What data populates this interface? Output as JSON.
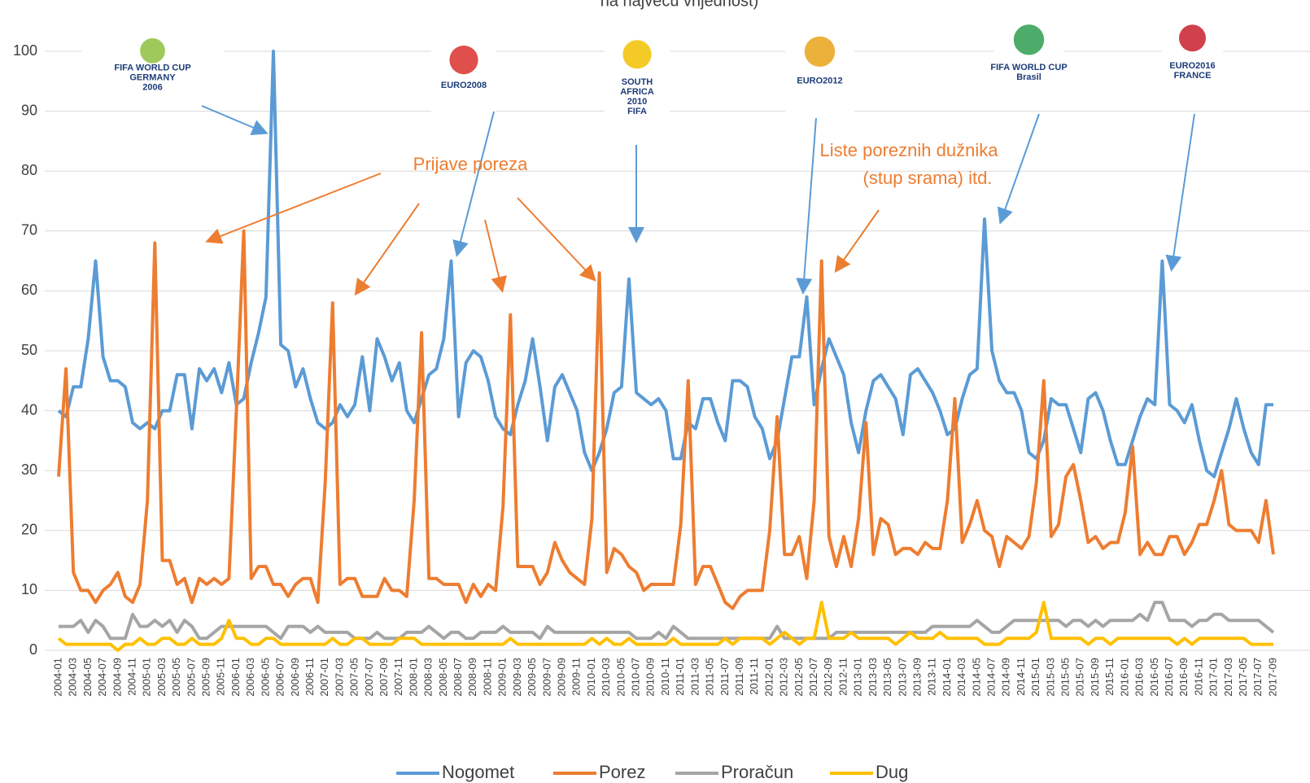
{
  "chart_data": {
    "type": "line",
    "title": "na najveću vrijednost)",
    "annotations": [
      "Prijave poreza",
      "Liste poreznih dužnika",
      "(stup srama) itd."
    ],
    "logos": [
      [
        "FIFA WORLD CUP",
        "GERMANY",
        "2006"
      ],
      [
        "EURO2008"
      ],
      [
        "SOUTH",
        "AFRICA",
        "2010",
        "FIFA"
      ],
      [
        "EURO2012"
      ],
      [
        "FIFA WORLD CUP",
        "Brasil"
      ],
      [
        "EURO2016",
        "FRANCE"
      ]
    ],
    "categories": [
      "2004-01",
      null,
      "2004-03",
      null,
      "2004-05",
      null,
      "2004-07",
      null,
      "2004-09",
      null,
      "2004-11",
      null,
      "2005-01",
      null,
      "2005-03",
      null,
      "2005-05",
      null,
      "2005-07",
      null,
      "2005-09",
      null,
      "2005-11",
      null,
      "2006-01",
      null,
      "2006-03",
      null,
      "2006-05",
      null,
      "2006-07",
      null,
      "2006-09",
      null,
      "2006-11",
      null,
      "2007-01",
      null,
      "2007-03",
      null,
      "2007-05",
      null,
      "2007-07",
      null,
      "2007-09",
      null,
      "2007-11",
      null,
      "2008-01",
      null,
      "2008-03",
      null,
      "2008-05",
      null,
      "2008-07",
      null,
      "2008-09",
      null,
      "2008-11",
      null,
      "2009-01",
      null,
      "2009-03",
      null,
      "2009-05",
      null,
      "2009-07",
      null,
      "2009-09",
      null,
      "2009-11",
      null,
      "2010-01",
      null,
      "2010-03",
      null,
      "2010-05",
      null,
      "2010-07",
      null,
      "2010-09",
      null,
      "2010-11",
      null,
      "2011-01",
      null,
      "2011-03",
      null,
      "2011-05",
      null,
      "2011-07",
      null,
      "2011-09",
      null,
      "2011-11",
      null,
      "2012-01",
      null,
      "2012-03",
      null,
      "2012-05",
      null,
      "2012-07",
      null,
      "2012-09",
      null,
      "2012-11",
      null,
      "2013-01",
      null,
      "2013-03",
      null,
      "2013-05",
      null,
      "2013-07",
      null,
      "2013-09",
      null,
      "2013-11",
      null,
      "2014-01",
      null,
      "2014-03",
      null,
      "2014-05",
      null,
      "2014-07",
      null,
      "2014-09",
      null,
      "2014-11",
      null,
      "2015-01",
      null,
      "2015-03",
      null,
      "2015-05",
      null,
      "2015-07",
      null,
      "2015-09",
      null,
      "2015-11",
      null,
      "2016-01",
      null,
      "2016-03",
      null,
      "2016-05",
      null,
      "2016-07",
      null,
      "2016-09",
      null,
      "2016-11",
      null,
      "2017-01",
      null,
      "2017-03",
      null,
      "2017-05",
      null,
      "2017-07",
      null,
      "2017-09"
    ],
    "series": [
      {
        "name": "Nogomet",
        "color": "#5b9bd5",
        "values": [
          40,
          39,
          44,
          44,
          52,
          65,
          49,
          45,
          45,
          44,
          38,
          37,
          38,
          37,
          40,
          40,
          46,
          46,
          37,
          47,
          45,
          47,
          43,
          48,
          41,
          42,
          48,
          53,
          59,
          100,
          51,
          50,
          44,
          47,
          42,
          38,
          37,
          38,
          41,
          39,
          41,
          49,
          40,
          52,
          49,
          45,
          48,
          40,
          38,
          42,
          46,
          47,
          52,
          65,
          39,
          48,
          50,
          49,
          45,
          39,
          37,
          36,
          41,
          45,
          52,
          44,
          35,
          44,
          46,
          43,
          40,
          33,
          30,
          33,
          37,
          43,
          44,
          62,
          43,
          42,
          41,
          42,
          40,
          32,
          32,
          38,
          37,
          42,
          42,
          38,
          35,
          45,
          45,
          44,
          39,
          37,
          32,
          35,
          42,
          49,
          49,
          59,
          41,
          47,
          52,
          49,
          46,
          38,
          33,
          40,
          45,
          46,
          44,
          42,
          36,
          46,
          47,
          45,
          43,
          40,
          36,
          37,
          42,
          46,
          47,
          72,
          50,
          45,
          43,
          43,
          40,
          33,
          32,
          35,
          42,
          41,
          41,
          37,
          33,
          42,
          43,
          40,
          35,
          31,
          31,
          35,
          39,
          42,
          41,
          65,
          41,
          40,
          38,
          41,
          35,
          30,
          29,
          33,
          37,
          42,
          37,
          33,
          31,
          41,
          41
        ]
      },
      {
        "name": "Porez",
        "color": "#ed7d31",
        "values": [
          29,
          47,
          13,
          10,
          10,
          8,
          10,
          11,
          13,
          9,
          8,
          11,
          25,
          68,
          15,
          15,
          11,
          12,
          8,
          12,
          11,
          12,
          11,
          12,
          40,
          70,
          12,
          14,
          14,
          11,
          11,
          9,
          11,
          12,
          12,
          8,
          28,
          58,
          11,
          12,
          12,
          9,
          9,
          9,
          12,
          10,
          10,
          9,
          25,
          53,
          12,
          12,
          11,
          11,
          11,
          8,
          11,
          9,
          11,
          10,
          24,
          56,
          14,
          14,
          14,
          11,
          13,
          18,
          15,
          13,
          12,
          11,
          22,
          63,
          13,
          17,
          16,
          14,
          13,
          10,
          11,
          11,
          11,
          11,
          21,
          45,
          11,
          14,
          14,
          11,
          8,
          7,
          9,
          10,
          10,
          10,
          20,
          39,
          16,
          16,
          19,
          12,
          25,
          65,
          19,
          14,
          19,
          14,
          22,
          38,
          16,
          22,
          21,
          16,
          17,
          17,
          16,
          18,
          17,
          17,
          25,
          42,
          18,
          21,
          25,
          20,
          19,
          14,
          19,
          18,
          17,
          19,
          28,
          45,
          19,
          21,
          29,
          31,
          25,
          18,
          19,
          17,
          18,
          18,
          23,
          34,
          16,
          18,
          16,
          16,
          19,
          19,
          16,
          18,
          21,
          21,
          25,
          30,
          21,
          20,
          20,
          20,
          18,
          25,
          16
        ]
      },
      {
        "name": "Proračun",
        "color": "#a5a5a5",
        "values": [
          4,
          4,
          4,
          5,
          3,
          5,
          4,
          2,
          2,
          2,
          6,
          4,
          4,
          5,
          4,
          5,
          3,
          5,
          4,
          2,
          2,
          3,
          4,
          4,
          4,
          4,
          4,
          4,
          4,
          3,
          2,
          4,
          4,
          4,
          3,
          4,
          3,
          3,
          3,
          3,
          2,
          2,
          2,
          3,
          2,
          2,
          2,
          3,
          3,
          3,
          4,
          3,
          2,
          3,
          3,
          2,
          2,
          3,
          3,
          3,
          4,
          3,
          3,
          3,
          3,
          2,
          4,
          3,
          3,
          3,
          3,
          3,
          3,
          3,
          3,
          3,
          3,
          3,
          2,
          2,
          2,
          3,
          2,
          4,
          3,
          2,
          2,
          2,
          2,
          2,
          2,
          2,
          2,
          2,
          2,
          2,
          2,
          4,
          2,
          2,
          2,
          2,
          2,
          2,
          2,
          3,
          3,
          3,
          3,
          3,
          3,
          3,
          3,
          3,
          3,
          3,
          3,
          3,
          4,
          4,
          4,
          4,
          4,
          4,
          5,
          4,
          3,
          3,
          4,
          5,
          5,
          5,
          5,
          5,
          5,
          5,
          4,
          5,
          5,
          4,
          5,
          4,
          5,
          5,
          5,
          5,
          6,
          5,
          8,
          8,
          5,
          5,
          5,
          4,
          5,
          5,
          6,
          6,
          5,
          5,
          5,
          5,
          5,
          4,
          3
        ]
      },
      {
        "name": "Dug",
        "color": "#ffc000",
        "values": [
          2,
          1,
          1,
          1,
          1,
          1,
          1,
          1,
          0,
          1,
          1,
          2,
          1,
          1,
          2,
          2,
          1,
          1,
          2,
          1,
          1,
          1,
          2,
          5,
          2,
          2,
          1,
          1,
          2,
          2,
          1,
          1,
          1,
          1,
          1,
          1,
          1,
          2,
          1,
          1,
          2,
          2,
          1,
          1,
          1,
          1,
          2,
          2,
          2,
          1,
          1,
          1,
          1,
          1,
          1,
          1,
          1,
          1,
          1,
          1,
          1,
          2,
          1,
          1,
          1,
          1,
          1,
          1,
          1,
          1,
          1,
          1,
          2,
          1,
          2,
          1,
          1,
          2,
          1,
          1,
          1,
          1,
          1,
          2,
          1,
          1,
          1,
          1,
          1,
          1,
          2,
          1,
          2,
          2,
          2,
          2,
          1,
          2,
          3,
          2,
          1,
          2,
          2,
          8,
          2,
          2,
          2,
          3,
          2,
          2,
          2,
          2,
          2,
          1,
          2,
          3,
          2,
          2,
          2,
          3,
          2,
          2,
          2,
          2,
          2,
          1,
          1,
          1,
          2,
          2,
          2,
          2,
          3,
          8,
          2,
          2,
          2,
          2,
          2,
          1,
          2,
          2,
          1,
          2,
          2,
          2,
          2,
          2,
          2,
          2,
          2,
          1,
          2,
          1,
          2,
          2,
          2,
          2,
          2,
          2,
          2,
          1,
          1,
          1,
          1
        ]
      }
    ],
    "ylim": [
      0,
      100
    ],
    "yticks": [
      0,
      10,
      20,
      30,
      40,
      50,
      60,
      70,
      80,
      90,
      100
    ],
    "grid": true,
    "legend": "bottom"
  }
}
